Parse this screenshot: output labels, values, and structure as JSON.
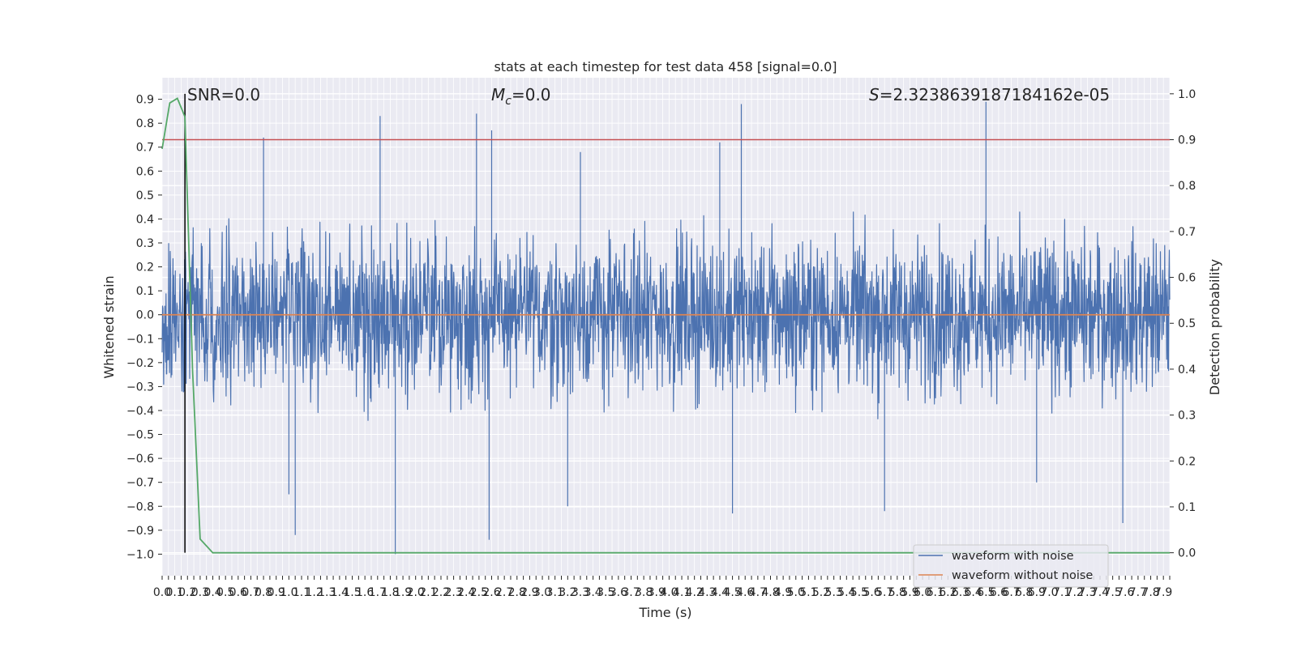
{
  "chart_data": {
    "type": "line",
    "title": "stats at each timestep for test data 458 [signal=0.0]",
    "xlabel": "Time (s)",
    "ylabel": "Whitened strain",
    "y2label": "Detection probability",
    "xlim": [
      0.0,
      7.95
    ],
    "ylim": [
      -1.09,
      0.99
    ],
    "y2lim": [
      -0.05,
      1.035
    ],
    "x_tick_step": 0.05,
    "y_tick_step": 0.1,
    "y2_tick_step": 0.1,
    "grid": true,
    "legend_position": "bottom-right",
    "threshold": 0.9,
    "event_time": 0.18,
    "annotations": {
      "snr": "SNR=0.0",
      "mc": "=0.0",
      "mc_symbol": "M",
      "mc_sub": "c",
      "s": "=2.3238639187184162e-05",
      "s_symbol": "S"
    },
    "series": [
      {
        "name": "waveform with noise",
        "color": "#4c72b0",
        "noise_envelope": 0.32,
        "peaks": [
          [
            0.8,
            0.74
          ],
          [
            1.72,
            0.83
          ],
          [
            1.84,
            -1.0
          ],
          [
            1.0,
            -0.75
          ],
          [
            1.05,
            -0.92
          ],
          [
            2.48,
            0.84
          ],
          [
            2.6,
            0.77
          ],
          [
            2.58,
            -0.94
          ],
          [
            3.3,
            0.68
          ],
          [
            3.2,
            -0.8
          ],
          [
            4.4,
            0.72
          ],
          [
            4.5,
            -0.83
          ],
          [
            4.57,
            0.88
          ],
          [
            5.7,
            -0.82
          ],
          [
            6.5,
            0.89
          ],
          [
            6.9,
            -0.7
          ],
          [
            7.58,
            -0.87
          ]
        ]
      },
      {
        "name": "waveform without noise",
        "color": "#dd8452",
        "constant": 0.0
      },
      {
        "name": "detection probability",
        "color": "#55a868",
        "axis": "right",
        "x": [
          0.0,
          0.06,
          0.12,
          0.18,
          0.24,
          0.3,
          0.4,
          0.6,
          1.0,
          2.0,
          3.0,
          4.0,
          5.0,
          6.0,
          7.0,
          7.95
        ],
        "values": [
          0.88,
          0.98,
          0.99,
          0.95,
          0.4,
          0.03,
          0.0,
          0.0,
          0.0,
          0.0,
          0.0,
          0.0,
          0.0,
          0.0,
          0.0,
          0.0
        ]
      }
    ]
  }
}
